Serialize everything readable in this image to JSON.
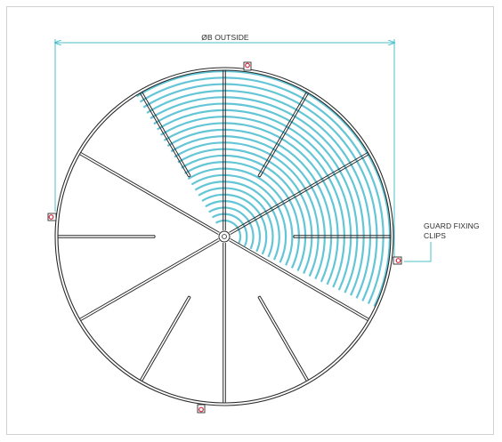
{
  "dimension_label": "ØB OUTSIDE",
  "callout_line1": "GUARD FIXING",
  "callout_line2": "CLIPS",
  "colors": {
    "frame_border": "#cfd3d6",
    "guard_line": "#2b2b2b",
    "mesh": "#63c5d6",
    "dimension_line": "#4bbfc9",
    "clip_accent": "#d6253a"
  }
}
